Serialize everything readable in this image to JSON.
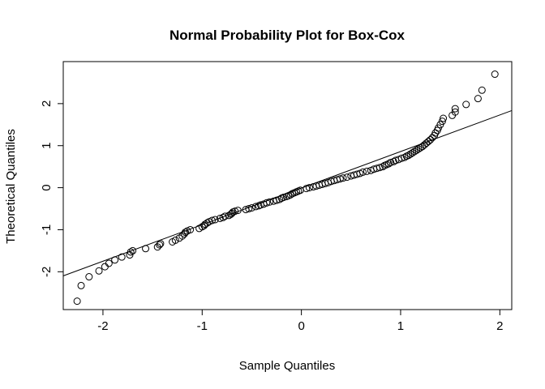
{
  "chart_data": {
    "type": "scatter",
    "title": "Normal Probability Plot for Box-Cox",
    "xlabel": "Sample Quantiles",
    "ylabel": "Theoretical Quantiles",
    "xlim": [
      -2.4,
      2.12
    ],
    "ylim": [
      -2.9,
      3.0
    ],
    "x_ticks": [
      -2,
      -1,
      0,
      1,
      2
    ],
    "y_ticks": [
      -2,
      -1,
      0,
      1,
      2
    ],
    "x_tick_labels": [
      "-2",
      "-1",
      "0",
      "1",
      "2"
    ],
    "y_tick_labels": [
      "-2",
      "-1",
      "0",
      "1",
      "2"
    ],
    "reference_line": {
      "slope": 0.87,
      "intercept": -0.01
    },
    "grid": false,
    "legend": "none",
    "points": [
      [
        -2.26,
        -2.7
      ],
      [
        -2.22,
        -2.33
      ],
      [
        -2.14,
        -2.12
      ],
      [
        -2.04,
        -1.98
      ],
      [
        -1.98,
        -1.88
      ],
      [
        -1.94,
        -1.8
      ],
      [
        -1.88,
        -1.72
      ],
      [
        -1.81,
        -1.65
      ],
      [
        -1.73,
        -1.6
      ],
      [
        -1.72,
        -1.53
      ],
      [
        -1.7,
        -1.5
      ],
      [
        -1.57,
        -1.45
      ],
      [
        -1.45,
        -1.41
      ],
      [
        -1.43,
        -1.36
      ],
      [
        -1.42,
        -1.33
      ],
      [
        -1.3,
        -1.29
      ],
      [
        -1.27,
        -1.25
      ],
      [
        -1.23,
        -1.2
      ],
      [
        -1.2,
        -1.15
      ],
      [
        -1.18,
        -1.1
      ],
      [
        -1.17,
        -1.06
      ],
      [
        -1.15,
        -1.03
      ],
      [
        -1.12,
        -1.0
      ],
      [
        -1.03,
        -0.97
      ],
      [
        -1.0,
        -0.93
      ],
      [
        -0.98,
        -0.9
      ],
      [
        -0.97,
        -0.87
      ],
      [
        -0.95,
        -0.84
      ],
      [
        -0.93,
        -0.81
      ],
      [
        -0.9,
        -0.78
      ],
      [
        -0.87,
        -0.76
      ],
      [
        -0.82,
        -0.73
      ],
      [
        -0.79,
        -0.71
      ],
      [
        -0.77,
        -0.68
      ],
      [
        -0.73,
        -0.66
      ],
      [
        -0.71,
        -0.63
      ],
      [
        -0.7,
        -0.61
      ],
      [
        -0.69,
        -0.58
      ],
      [
        -0.67,
        -0.56
      ],
      [
        -0.64,
        -0.54
      ],
      [
        -0.56,
        -0.52
      ],
      [
        -0.53,
        -0.5
      ],
      [
        -0.5,
        -0.48
      ],
      [
        -0.46,
        -0.45
      ],
      [
        -0.43,
        -0.43
      ],
      [
        -0.41,
        -0.41
      ],
      [
        -0.38,
        -0.39
      ],
      [
        -0.35,
        -0.36
      ],
      [
        -0.32,
        -0.34
      ],
      [
        -0.28,
        -0.32
      ],
      [
        -0.25,
        -0.3
      ],
      [
        -0.22,
        -0.28
      ],
      [
        -0.2,
        -0.25
      ],
      [
        -0.18,
        -0.23
      ],
      [
        -0.15,
        -0.21
      ],
      [
        -0.13,
        -0.19
      ],
      [
        -0.11,
        -0.17
      ],
      [
        -0.09,
        -0.14
      ],
      [
        -0.07,
        -0.12
      ],
      [
        -0.05,
        -0.1
      ],
      [
        -0.03,
        -0.08
      ],
      [
        -0.01,
        -0.06
      ],
      [
        0.05,
        -0.02
      ],
      [
        0.08,
        0.0
      ],
      [
        0.12,
        0.02
      ],
      [
        0.15,
        0.04
      ],
      [
        0.18,
        0.06
      ],
      [
        0.21,
        0.08
      ],
      [
        0.24,
        0.1
      ],
      [
        0.27,
        0.12
      ],
      [
        0.3,
        0.15
      ],
      [
        0.33,
        0.17
      ],
      [
        0.36,
        0.19
      ],
      [
        0.39,
        0.21
      ],
      [
        0.42,
        0.23
      ],
      [
        0.46,
        0.25
      ],
      [
        0.5,
        0.28
      ],
      [
        0.53,
        0.3
      ],
      [
        0.56,
        0.32
      ],
      [
        0.59,
        0.34
      ],
      [
        0.62,
        0.37
      ],
      [
        0.66,
        0.39
      ],
      [
        0.7,
        0.41
      ],
      [
        0.73,
        0.44
      ],
      [
        0.76,
        0.46
      ],
      [
        0.79,
        0.48
      ],
      [
        0.82,
        0.5
      ],
      [
        0.84,
        0.53
      ],
      [
        0.86,
        0.55
      ],
      [
        0.88,
        0.57
      ],
      [
        0.9,
        0.6
      ],
      [
        0.93,
        0.62
      ],
      [
        0.95,
        0.65
      ],
      [
        0.98,
        0.67
      ],
      [
        1.01,
        0.7
      ],
      [
        1.04,
        0.72
      ],
      [
        1.06,
        0.75
      ],
      [
        1.08,
        0.77
      ],
      [
        1.1,
        0.8
      ],
      [
        1.12,
        0.83
      ],
      [
        1.14,
        0.86
      ],
      [
        1.16,
        0.89
      ],
      [
        1.18,
        0.92
      ],
      [
        1.2,
        0.95
      ],
      [
        1.22,
        0.98
      ],
      [
        1.24,
        1.02
      ],
      [
        1.26,
        1.06
      ],
      [
        1.28,
        1.1
      ],
      [
        1.3,
        1.14
      ],
      [
        1.32,
        1.19
      ],
      [
        1.34,
        1.24
      ],
      [
        1.35,
        1.3
      ],
      [
        1.37,
        1.36
      ],
      [
        1.38,
        1.42
      ],
      [
        1.4,
        1.5
      ],
      [
        1.42,
        1.58
      ],
      [
        1.43,
        1.65
      ],
      [
        1.52,
        1.72
      ],
      [
        1.55,
        1.8
      ],
      [
        1.55,
        1.88
      ],
      [
        1.66,
        1.98
      ],
      [
        1.78,
        2.12
      ],
      [
        1.82,
        2.32
      ],
      [
        1.95,
        2.7
      ]
    ]
  }
}
